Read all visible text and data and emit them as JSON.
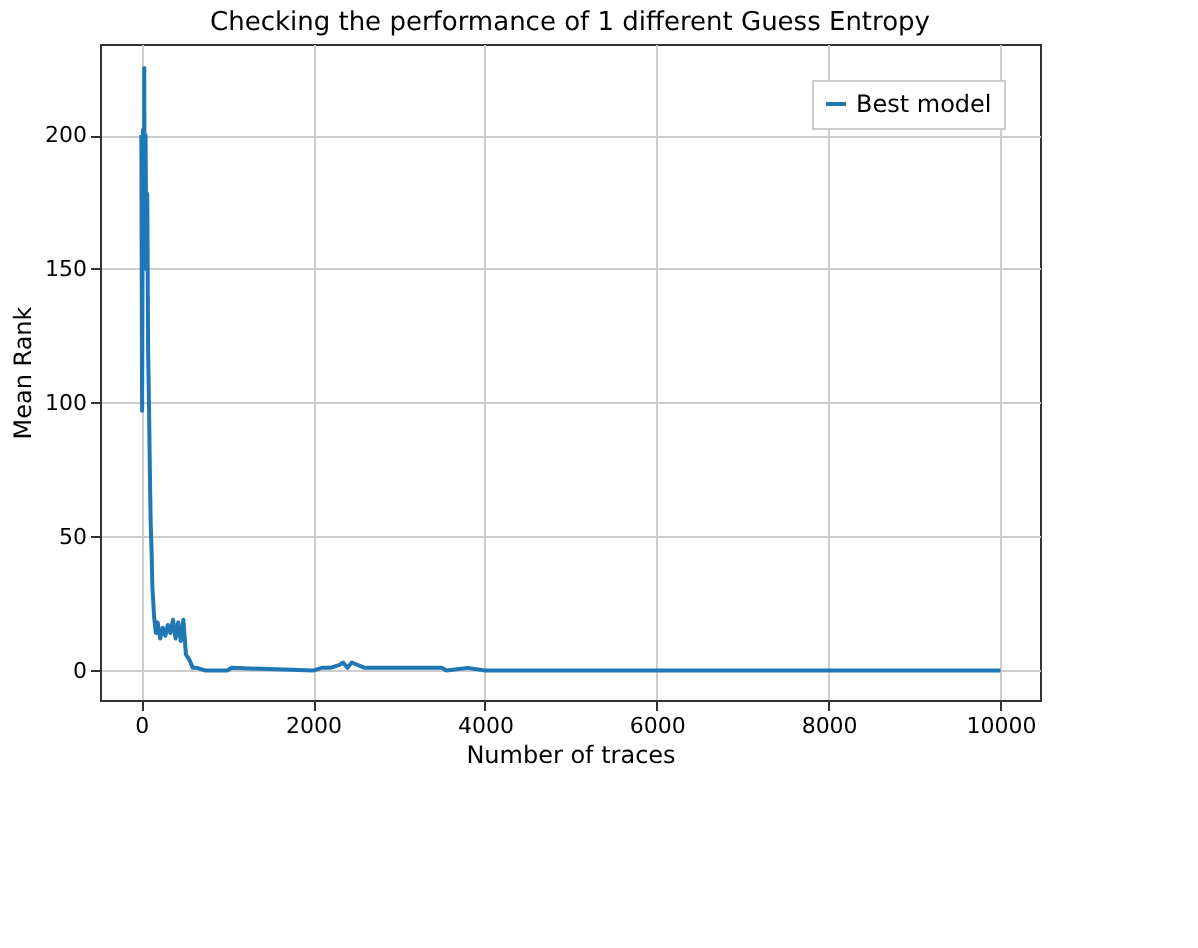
{
  "chart_data": {
    "type": "line",
    "title": "Checking the performance of 1 different Guess Entropy",
    "xlabel": "Number of traces",
    "ylabel": "Mean Rank",
    "x": [
      1,
      10,
      20,
      30,
      35,
      40,
      50,
      60,
      70,
      80,
      90,
      100,
      110,
      120,
      130,
      150,
      170,
      190,
      220,
      250,
      280,
      310,
      340,
      370,
      400,
      430,
      460,
      490,
      520,
      560,
      600,
      650,
      750,
      800,
      1000,
      1050,
      2000,
      2100,
      2200,
      2300,
      2350,
      2400,
      2450,
      2600,
      3500,
      3550,
      3800,
      4000,
      6000,
      8000,
      10000
    ],
    "series": [
      {
        "name": "Best model",
        "color": "#1f77b4",
        "values": [
          200,
          97,
          202,
          150,
          225,
          160,
          200,
          150,
          178,
          120,
          100,
          75,
          55,
          45,
          31,
          20,
          14,
          18,
          12,
          16,
          13,
          17,
          14,
          19,
          12,
          18,
          11,
          19,
          6,
          4,
          1,
          1,
          0,
          0,
          0,
          1,
          0,
          1,
          1,
          2,
          3,
          1,
          3,
          1,
          1,
          0,
          1,
          0,
          0,
          0,
          0
        ]
      }
    ],
    "xlim": [
      -480,
      10460
    ],
    "ylim": [
      -11,
      234
    ],
    "xticks": [
      0,
      2000,
      4000,
      6000,
      8000,
      10000
    ],
    "yticks": [
      0,
      50,
      100,
      150,
      200
    ],
    "grid": true,
    "legend": "top right",
    "line_style": "solid",
    "marker": "none"
  }
}
